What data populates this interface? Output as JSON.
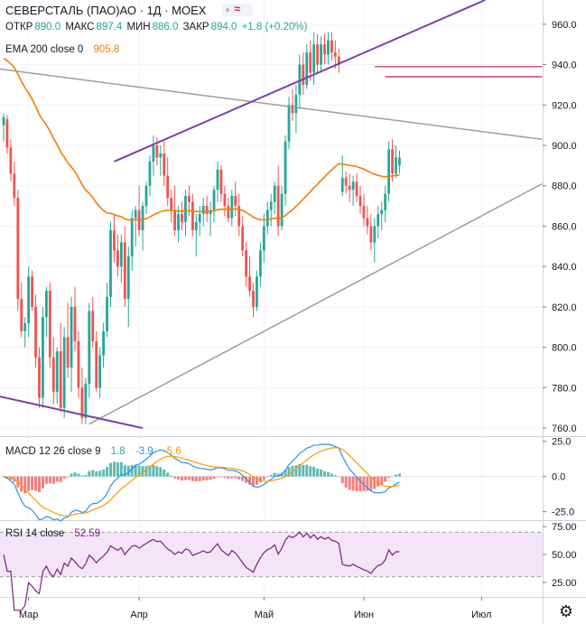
{
  "header": {
    "symbol": "СЕВЕРСТАЛЬ (ПАО)АО · 1Д · MOEX",
    "ohlc": [
      {
        "label": "ОТКР",
        "value": "890.0"
      },
      {
        "label": "МАКС",
        "value": "897.4"
      },
      {
        "label": "МИН",
        "value": "886.0"
      },
      {
        "label": "ЗАКР",
        "value": "894.0"
      }
    ],
    "change": "+1.8 (+0.20%)",
    "ema_label": "EMA 200 close 0",
    "ema_value": "905.8"
  },
  "macd_legend": {
    "label": "MACD 12 26 close 9",
    "v1": "1.8",
    "v2": "-3.9",
    "v3": "-5.6"
  },
  "rsi_legend": {
    "label": "RSI 14 close",
    "value": "52.59"
  },
  "x_axis": {
    "labels": [
      "Мар",
      "Апр",
      "Май",
      "Июн",
      "Июл"
    ]
  },
  "price_axis": {
    "labels": [
      "960.0",
      "940.0",
      "920.0",
      "900.0",
      "880.0",
      "860.0",
      "840.0",
      "820.0",
      "800.0",
      "780.0",
      "760.0"
    ]
  },
  "macd_axis": {
    "labels": [
      "25.0",
      "0.0",
      "-25.0"
    ]
  },
  "rsi_axis": {
    "labels": [
      "75.00",
      "50.00",
      "25.00"
    ]
  },
  "colors": {
    "up": "#26a69a",
    "down": "#ef5350",
    "ema": "#f57c00",
    "channel": "#7e3fa8",
    "trend": "#9e9e9e",
    "level": "#c2185b",
    "macd": "#2196f3",
    "signal": "#ff9800",
    "rsi": "#7e1f86",
    "rsi_fill": "#f3e5f5"
  },
  "icons": {
    "settings": "gear-icon"
  },
  "chart_data": {
    "type": "candlestick",
    "price_ylim": [
      756,
      972
    ],
    "macd_ylim": [
      -31,
      28
    ],
    "rsi_ylim": [
      12,
      80
    ],
    "month_ticks": [
      {
        "label": "Мар",
        "index": 7
      },
      {
        "label": "Апр",
        "index": 38
      },
      {
        "label": "Май",
        "index": 73
      },
      {
        "label": "Июн",
        "index": 101
      },
      {
        "label": "Июл",
        "index": 134
      }
    ],
    "candles": [
      [
        910,
        916,
        902,
        914
      ],
      [
        913,
        915,
        896,
        899
      ],
      [
        899,
        903,
        882,
        886
      ],
      [
        886,
        892,
        870,
        874
      ],
      [
        874,
        878,
        818,
        824
      ],
      [
        824,
        832,
        805,
        808
      ],
      [
        808,
        815,
        800,
        812
      ],
      [
        812,
        840,
        805,
        835
      ],
      [
        835,
        838,
        818,
        820
      ],
      [
        820,
        826,
        790,
        795
      ],
      [
        795,
        800,
        770,
        775
      ],
      [
        775,
        820,
        770,
        815
      ],
      [
        815,
        830,
        805,
        828
      ],
      [
        828,
        832,
        790,
        795
      ],
      [
        795,
        805,
        772,
        778
      ],
      [
        778,
        800,
        772,
        798
      ],
      [
        798,
        812,
        768,
        770
      ],
      [
        770,
        810,
        765,
        805
      ],
      [
        805,
        822,
        785,
        790
      ],
      [
        790,
        825,
        778,
        820
      ],
      [
        820,
        830,
        798,
        803
      ],
      [
        803,
        808,
        775,
        780
      ],
      [
        780,
        790,
        762,
        765
      ],
      [
        765,
        785,
        762,
        782
      ],
      [
        782,
        822,
        775,
        818
      ],
      [
        818,
        825,
        800,
        803
      ],
      [
        803,
        808,
        778,
        780
      ],
      [
        780,
        800,
        775,
        796
      ],
      [
        796,
        812,
        790,
        808
      ],
      [
        808,
        832,
        805,
        825
      ],
      [
        825,
        862,
        820,
        858
      ],
      [
        858,
        866,
        842,
        848
      ],
      [
        848,
        856,
        835,
        840
      ],
      [
        840,
        856,
        832,
        852
      ],
      [
        852,
        860,
        820,
        824
      ],
      [
        824,
        850,
        810,
        845
      ],
      [
        845,
        868,
        838,
        864
      ],
      [
        864,
        870,
        850,
        868
      ],
      [
        868,
        880,
        855,
        858
      ],
      [
        858,
        872,
        848,
        870
      ],
      [
        870,
        882,
        866,
        880
      ],
      [
        880,
        895,
        875,
        892
      ],
      [
        892,
        905,
        885,
        900
      ],
      [
        900,
        904,
        890,
        894
      ],
      [
        894,
        900,
        885,
        896
      ],
      [
        896,
        902,
        880,
        885
      ],
      [
        885,
        894,
        870,
        874
      ],
      [
        874,
        878,
        862,
        868
      ],
      [
        868,
        880,
        855,
        858
      ],
      [
        858,
        870,
        852,
        866
      ],
      [
        866,
        872,
        858,
        862
      ],
      [
        862,
        878,
        855,
        875
      ],
      [
        875,
        880,
        865,
        872
      ],
      [
        872,
        876,
        855,
        858
      ],
      [
        858,
        866,
        845,
        862
      ],
      [
        862,
        870,
        855,
        866
      ],
      [
        866,
        874,
        860,
        870
      ],
      [
        870,
        875,
        862,
        866
      ],
      [
        866,
        872,
        855,
        868
      ],
      [
        868,
        880,
        862,
        878
      ],
      [
        878,
        892,
        872,
        888
      ],
      [
        888,
        890,
        872,
        876
      ],
      [
        876,
        880,
        865,
        870
      ],
      [
        870,
        874,
        862,
        864
      ],
      [
        864,
        878,
        860,
        875
      ],
      [
        875,
        882,
        865,
        870
      ],
      [
        870,
        876,
        855,
        860
      ],
      [
        860,
        865,
        845,
        848
      ],
      [
        848,
        852,
        830,
        835
      ],
      [
        835,
        845,
        825,
        828
      ],
      [
        828,
        832,
        815,
        820
      ],
      [
        820,
        838,
        818,
        835
      ],
      [
        835,
        852,
        830,
        848
      ],
      [
        848,
        866,
        842,
        860
      ],
      [
        860,
        872,
        856,
        868
      ],
      [
        868,
        876,
        860,
        872
      ],
      [
        872,
        882,
        866,
        880
      ],
      [
        880,
        890,
        855,
        860
      ],
      [
        860,
        880,
        858,
        876
      ],
      [
        876,
        905,
        870,
        902
      ],
      [
        902,
        924,
        898,
        920
      ],
      [
        920,
        928,
        912,
        916
      ],
      [
        916,
        930,
        906,
        925
      ],
      [
        925,
        945,
        918,
        940
      ],
      [
        940,
        946,
        925,
        930
      ],
      [
        930,
        950,
        928,
        946
      ],
      [
        946,
        952,
        932,
        936
      ],
      [
        936,
        956,
        930,
        950
      ],
      [
        950,
        955,
        936,
        940
      ],
      [
        940,
        954,
        936,
        950
      ],
      [
        950,
        955,
        940,
        945
      ],
      [
        945,
        956,
        940,
        952
      ],
      [
        952,
        956,
        942,
        946
      ],
      [
        946,
        952,
        938,
        944
      ],
      [
        944,
        948,
        936,
        940
      ],
      [
        877,
        895,
        875,
        884
      ],
      [
        884,
        887,
        876,
        880
      ],
      [
        880,
        886,
        872,
        878
      ],
      [
        878,
        885,
        870,
        882
      ],
      [
        882,
        886,
        872,
        875
      ],
      [
        875,
        880,
        866,
        870
      ],
      [
        870,
        876,
        860,
        864
      ],
      [
        864,
        870,
        856,
        860
      ],
      [
        860,
        866,
        848,
        852
      ],
      [
        852,
        864,
        842,
        860
      ],
      [
        860,
        870,
        854,
        866
      ],
      [
        866,
        872,
        858,
        868
      ],
      [
        868,
        880,
        862,
        876
      ],
      [
        876,
        902,
        872,
        898
      ],
      [
        898,
        903,
        882,
        886
      ],
      [
        886,
        900,
        884,
        894
      ],
      [
        890,
        897.4,
        886,
        894
      ]
    ]
  }
}
